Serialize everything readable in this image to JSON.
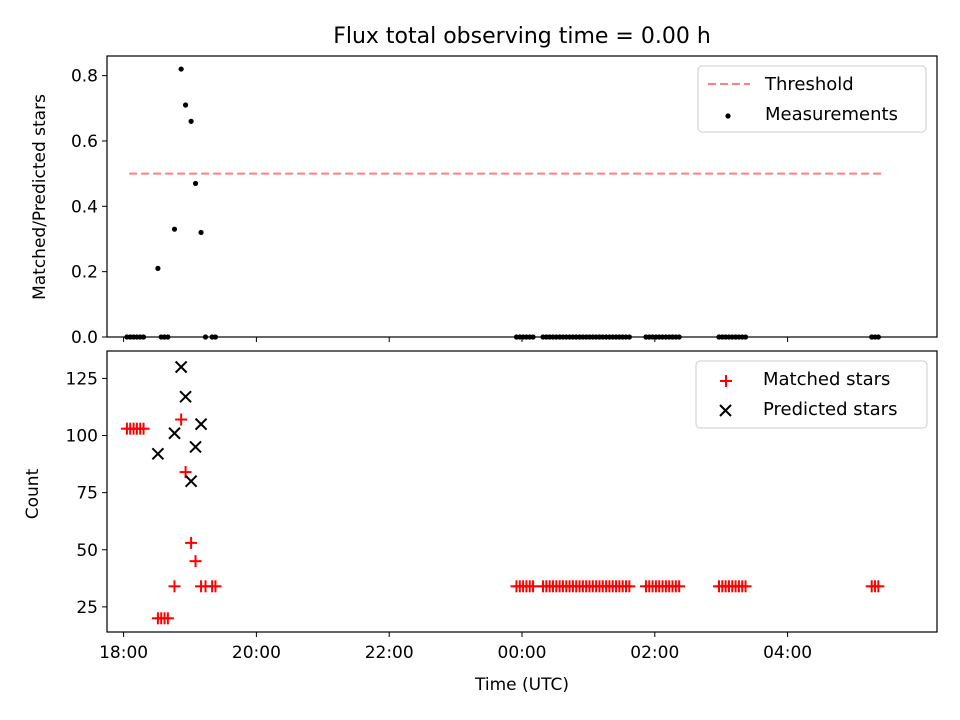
{
  "chart_data": [
    {
      "type": "scatter",
      "title": "Flux total observing time = 0.00 h",
      "xlabel": "",
      "ylabel": "Matched/Predicted stars",
      "xlim": [
        "17:45",
        "06:15"
      ],
      "ylim": [
        0,
        0.86
      ],
      "yticks": [
        0.0,
        0.2,
        0.4,
        0.6,
        0.8
      ],
      "ytick_labels": [
        "0.0",
        "0.2",
        "0.4",
        "0.6",
        "0.8"
      ],
      "legend": {
        "placement": "top-right",
        "entries": [
          "Threshold",
          "Measurements"
        ]
      },
      "threshold": {
        "name": "Threshold",
        "value": 0.5,
        "x_range": [
          "18:05",
          "05:25"
        ],
        "color": "#ff7f7f",
        "style": "dashed"
      },
      "series": [
        {
          "name": "Measurements",
          "marker": "dot",
          "color": "#000000",
          "x": [
            "18:03",
            "18:06",
            "18:09",
            "18:12",
            "18:15",
            "18:18",
            "18:31",
            "18:34",
            "18:37",
            "18:40",
            "18:46",
            "18:52",
            "18:56",
            "19:01",
            "19:05",
            "19:10",
            "19:14",
            "19:20",
            "19:23",
            "23:55",
            "23:58",
            "00:01",
            "00:04",
            "00:07",
            "00:10",
            "00:19",
            "00:22",
            "00:25",
            "00:28",
            "00:31",
            "00:34",
            "00:37",
            "00:40",
            "00:43",
            "00:46",
            "00:49",
            "00:52",
            "00:55",
            "00:58",
            "01:01",
            "01:04",
            "01:07",
            "01:10",
            "01:13",
            "01:16",
            "01:19",
            "01:22",
            "01:25",
            "01:28",
            "01:31",
            "01:34",
            "01:37",
            "01:52",
            "01:55",
            "01:58",
            "02:01",
            "02:04",
            "02:07",
            "02:10",
            "02:13",
            "02:16",
            "02:19",
            "02:22",
            "02:58",
            "03:01",
            "03:04",
            "03:07",
            "03:10",
            "03:13",
            "03:16",
            "03:19",
            "03:22",
            "05:16",
            "05:19",
            "05:22"
          ],
          "y": [
            0,
            0,
            0,
            0,
            0,
            0,
            0.21,
            0,
            0,
            0,
            0.33,
            0.82,
            0.71,
            0.66,
            0.47,
            0.32,
            0,
            0,
            0,
            0,
            0,
            0,
            0,
            0,
            0,
            0,
            0,
            0,
            0,
            0,
            0,
            0,
            0,
            0,
            0,
            0,
            0,
            0,
            0,
            0,
            0,
            0,
            0,
            0,
            0,
            0,
            0,
            0,
            0,
            0,
            0,
            0,
            0,
            0,
            0,
            0,
            0,
            0,
            0,
            0,
            0,
            0,
            0,
            0,
            0,
            0,
            0,
            0,
            0,
            0,
            0,
            0,
            0,
            0,
            0
          ]
        }
      ]
    },
    {
      "type": "scatter",
      "title": "",
      "xlabel": "Time (UTC)",
      "ylabel": "Count",
      "xlim": [
        "17:45",
        "06:15"
      ],
      "ylim": [
        14,
        137
      ],
      "xticks": [
        "18:00",
        "20:00",
        "22:00",
        "00:00",
        "02:00",
        "04:00"
      ],
      "xtick_labels": [
        "18:00",
        "20:00",
        "22:00",
        "00:00",
        "02:00",
        "04:00"
      ],
      "yticks": [
        25,
        50,
        75,
        100,
        125
      ],
      "ytick_labels": [
        "25",
        "50",
        "75",
        "100",
        "125"
      ],
      "legend": {
        "placement": "top-right",
        "entries": [
          "Matched stars",
          "Predicted stars"
        ]
      },
      "series": [
        {
          "name": "Matched stars",
          "marker": "plus",
          "color": "#ff0000",
          "x": [
            "18:03",
            "18:06",
            "18:09",
            "18:12",
            "18:15",
            "18:18",
            "18:31",
            "18:34",
            "18:37",
            "18:40",
            "18:46",
            "18:52",
            "18:56",
            "19:01",
            "19:05",
            "19:10",
            "19:14",
            "19:20",
            "19:23",
            "23:55",
            "23:58",
            "00:01",
            "00:04",
            "00:07",
            "00:10",
            "00:19",
            "00:22",
            "00:25",
            "00:28",
            "00:31",
            "00:34",
            "00:37",
            "00:40",
            "00:43",
            "00:46",
            "00:49",
            "00:52",
            "00:55",
            "00:58",
            "01:01",
            "01:04",
            "01:07",
            "01:10",
            "01:13",
            "01:16",
            "01:19",
            "01:22",
            "01:25",
            "01:28",
            "01:31",
            "01:34",
            "01:37",
            "01:52",
            "01:55",
            "01:58",
            "02:01",
            "02:04",
            "02:07",
            "02:10",
            "02:13",
            "02:16",
            "02:19",
            "02:22",
            "02:58",
            "03:01",
            "03:04",
            "03:07",
            "03:10",
            "03:13",
            "03:16",
            "03:19",
            "03:22",
            "05:16",
            "05:19",
            "05:22"
          ],
          "y": [
            103,
            103,
            103,
            103,
            103,
            103,
            20,
            20,
            20,
            20,
            34,
            107,
            84,
            53,
            45,
            34,
            34,
            34,
            34,
            34,
            34,
            34,
            34,
            34,
            34,
            34,
            34,
            34,
            34,
            34,
            34,
            34,
            34,
            34,
            34,
            34,
            34,
            34,
            34,
            34,
            34,
            34,
            34,
            34,
            34,
            34,
            34,
            34,
            34,
            34,
            34,
            34,
            34,
            34,
            34,
            34,
            34,
            34,
            34,
            34,
            34,
            34,
            34,
            34,
            34,
            34,
            34,
            34,
            34,
            34,
            34,
            34,
            34,
            34,
            34
          ]
        },
        {
          "name": "Predicted stars",
          "marker": "x",
          "color": "#000000",
          "x": [
            "18:31",
            "18:46",
            "18:52",
            "18:56",
            "19:01",
            "19:05",
            "19:10"
          ],
          "y": [
            92,
            101,
            130,
            117,
            80,
            95,
            105
          ]
        }
      ]
    }
  ]
}
